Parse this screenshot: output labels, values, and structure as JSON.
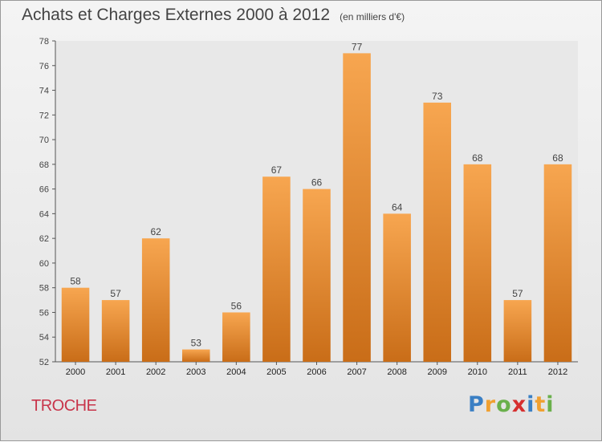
{
  "title": "Achats et Charges Externes 2000 à 2012",
  "subtitle": "(en milliers d'€)",
  "location": "TROCHE",
  "logo": {
    "letters": [
      "P",
      "r",
      "o",
      "x",
      "i",
      "t",
      "i"
    ],
    "colors": [
      "#3a7fc4",
      "#f0a030",
      "#6ab04c",
      "#d62f2f",
      "#3a7fc4",
      "#f0a030",
      "#6ab04c"
    ]
  },
  "colors": {
    "bar_top": "#f7a650",
    "bar_bottom": "#c96d18",
    "text": "#444444",
    "location": "#c8344a"
  },
  "chart_data": {
    "type": "bar",
    "title": "Achats et Charges Externes 2000 à 2012",
    "subtitle": "(en milliers d'€)",
    "categories": [
      "2000",
      "2001",
      "2002",
      "2003",
      "2004",
      "2005",
      "2006",
      "2007",
      "2008",
      "2009",
      "2010",
      "2011",
      "2012"
    ],
    "values": [
      58,
      57,
      62,
      53,
      56,
      67,
      66,
      77,
      64,
      73,
      68,
      57,
      68
    ],
    "ylim": [
      52,
      78
    ],
    "yticks": [
      52,
      54,
      56,
      58,
      60,
      62,
      64,
      66,
      68,
      70,
      72,
      74,
      76,
      78
    ],
    "grid": false,
    "legend": "none"
  }
}
